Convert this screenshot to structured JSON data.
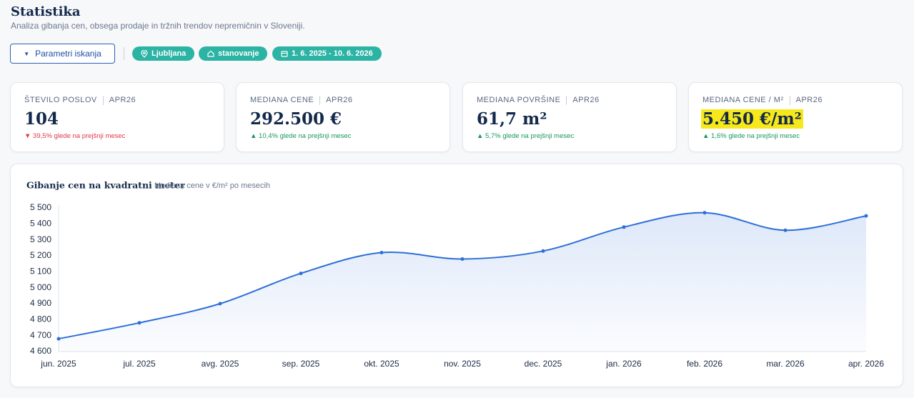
{
  "header": {
    "title": "Statistika",
    "subtitle": "Analiza gibanja cen, obsega prodaje in tržnih trendov nepremičnin v Sloveniji."
  },
  "filters": {
    "button": "Parametri iskanja",
    "location": "Ljubljana",
    "property_type": "stanovanje",
    "date_range": "1. 6. 2025 - 10. 6. 2026"
  },
  "kpis": [
    {
      "label": "ŠTEVILO POSLOV",
      "period": "APR26",
      "value": "104",
      "change": "▼ 39,5% glede na prejšnji mesec",
      "color": "#e0364a"
    },
    {
      "label": "MEDIANA CENE",
      "period": "APR26",
      "value": "292.500 €",
      "change": "▲ 10,4% glede na prejšnji mesec",
      "color": "#17965f"
    },
    {
      "label": "MEDIANA POVRŠINE",
      "period": "APR26",
      "value": "61,7 m²",
      "change": "▲ 5,7% glede na prejšnji mesec",
      "color": "#17965f"
    },
    {
      "label": "MEDIANA CENE / M²",
      "period": "APR26",
      "value": "5.450 €/m²",
      "change": "▲ 1,6% glede na prejšnji mesec",
      "color": "#17965f"
    }
  ],
  "chart_data": {
    "type": "line",
    "title": "Gibanje cen na kvadratni meter",
    "subtitle": "Mediana cene v €/m² po mesecih",
    "categories": [
      "jun. 2025",
      "jul. 2025",
      "avg. 2025",
      "sep. 2025",
      "okt. 2025",
      "nov. 2025",
      "dec. 2025",
      "jan. 2026",
      "feb. 2026",
      "mar. 2026",
      "apr. 2026"
    ],
    "values": [
      4680,
      4780,
      4900,
      5090,
      5220,
      5180,
      5230,
      5380,
      5470,
      5360,
      5450
    ],
    "color": "#2e6fd8",
    "ylim": [
      4600,
      5500
    ],
    "yticks": [
      {
        "value": 4600,
        "label": "4 600"
      },
      {
        "value": 4700,
        "label": "4 700"
      },
      {
        "value": 4800,
        "label": "4 800"
      },
      {
        "value": 4900,
        "label": "4 900"
      },
      {
        "value": 5000,
        "label": "5 000"
      },
      {
        "value": 5100,
        "label": "5 100"
      },
      {
        "value": 5200,
        "label": "5 200"
      },
      {
        "value": 5300,
        "label": "5 300"
      },
      {
        "value": 5400,
        "label": "5 400"
      },
      {
        "value": 5500,
        "label": "5 500"
      }
    ],
    "grid": false
  }
}
